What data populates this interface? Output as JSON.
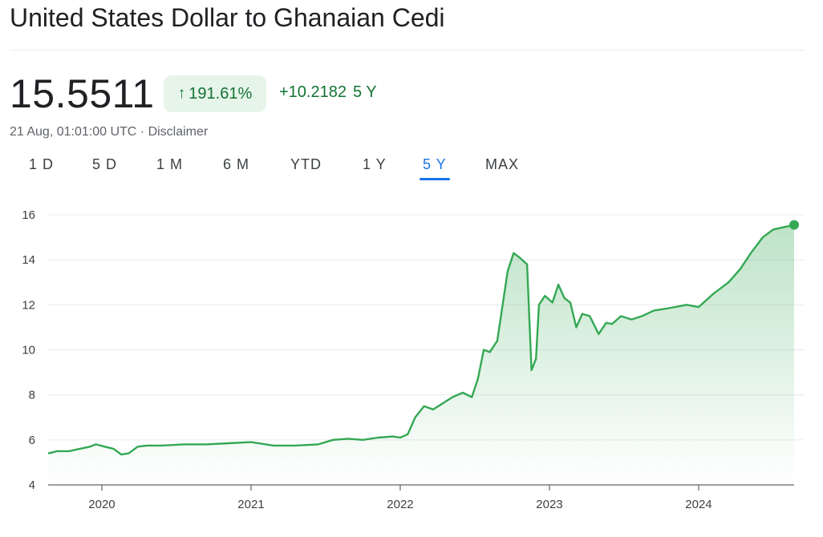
{
  "header": {
    "title": "United States Dollar to Ghanaian Cedi",
    "price": "15.5511",
    "percent_change": "191.61%",
    "percent_arrow": "↑",
    "abs_change": "+10.2182",
    "period_label": "5 Y",
    "timestamp": "21 Aug, 01:01:00 UTC",
    "separator": "·",
    "disclaimer": "Disclaimer"
  },
  "tabs": [
    {
      "label": "1 D"
    },
    {
      "label": "5 D"
    },
    {
      "label": "1 M"
    },
    {
      "label": "6 M"
    },
    {
      "label": "YTD"
    },
    {
      "label": "1 Y"
    },
    {
      "label": "5 Y",
      "active": true
    },
    {
      "label": "MAX"
    }
  ],
  "colors": {
    "line": "#34a853",
    "positive_text": "#137333",
    "positive_bg": "#e6f4ea",
    "active_tab": "#1a73e8",
    "grid": "#e8eaed"
  },
  "chart_data": {
    "type": "area",
    "title": "",
    "xlabel": "",
    "ylabel": "",
    "ylim": [
      4,
      16
    ],
    "y_ticks": [
      4,
      6,
      8,
      10,
      12,
      14,
      16
    ],
    "x_ticks": [
      "2020",
      "2021",
      "2022",
      "2023",
      "2024"
    ],
    "x_tick_years": [
      2020,
      2021,
      2022,
      2023,
      2024
    ],
    "xlim": [
      2019.64,
      2024.64
    ],
    "grid": true,
    "series": [
      {
        "x": [
          2019.64,
          2019.7,
          2019.78,
          2019.85,
          2019.92,
          2019.96,
          2020.02,
          2020.08,
          2020.13,
          2020.18,
          2020.24,
          2020.3,
          2020.4,
          2020.55,
          2020.7,
          2020.85,
          2021.0,
          2021.15,
          2021.3,
          2021.45,
          2021.55,
          2021.65,
          2021.75,
          2021.85,
          2021.95,
          2022.0,
          2022.05,
          2022.1,
          2022.16,
          2022.22,
          2022.28,
          2022.35,
          2022.42,
          2022.48,
          2022.52,
          2022.56,
          2022.6,
          2022.65,
          2022.72,
          2022.76,
          2022.8,
          2022.85,
          2022.88,
          2022.91,
          2022.93,
          2022.97,
          2023.02,
          2023.06,
          2023.1,
          2023.14,
          2023.18,
          2023.22,
          2023.27,
          2023.33,
          2023.38,
          2023.42,
          2023.48,
          2023.55,
          2023.62,
          2023.7,
          2023.8,
          2023.92,
          2024.0,
          2024.1,
          2024.2,
          2024.28,
          2024.35,
          2024.43,
          2024.5,
          2024.57,
          2024.64
        ],
        "y": [
          5.4,
          5.5,
          5.5,
          5.6,
          5.7,
          5.8,
          5.7,
          5.6,
          5.35,
          5.4,
          5.7,
          5.75,
          5.75,
          5.8,
          5.8,
          5.85,
          5.9,
          5.75,
          5.75,
          5.8,
          6.0,
          6.05,
          6.0,
          6.1,
          6.15,
          6.1,
          6.25,
          7.0,
          7.5,
          7.35,
          7.6,
          7.9,
          8.1,
          7.9,
          8.7,
          10.0,
          9.9,
          10.4,
          13.5,
          14.3,
          14.1,
          13.8,
          9.1,
          9.6,
          12.0,
          12.4,
          12.1,
          12.9,
          12.3,
          12.1,
          11.0,
          11.6,
          11.5,
          10.7,
          11.2,
          11.15,
          11.5,
          11.35,
          11.5,
          11.75,
          11.85,
          12.0,
          11.9,
          12.5,
          13.0,
          13.6,
          14.3,
          15.0,
          15.35,
          15.45,
          15.55
        ]
      }
    ],
    "last_value": 15.5511
  }
}
